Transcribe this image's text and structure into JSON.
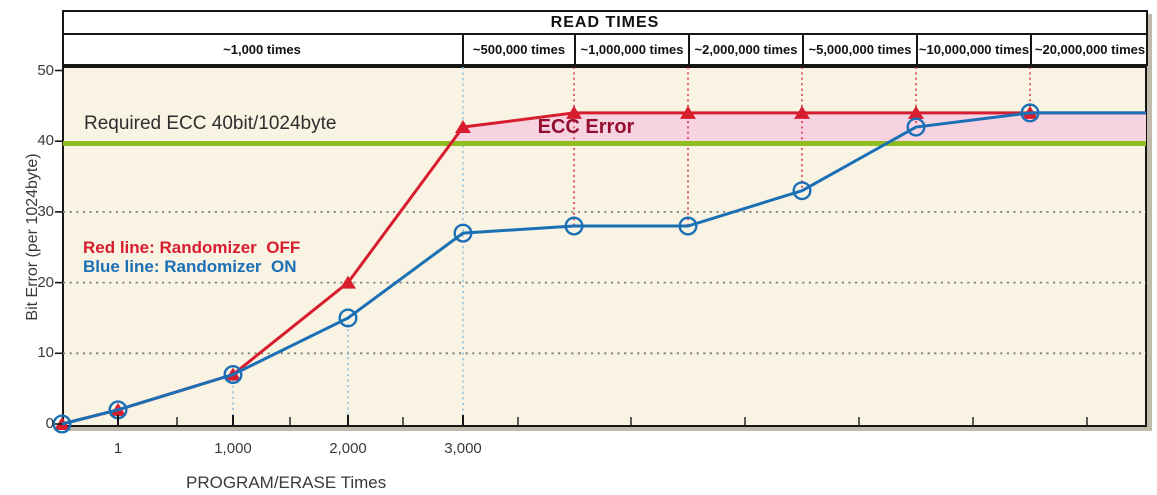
{
  "header": {
    "title": "READ TIMES",
    "columns": [
      {
        "label": "~1,000 times"
      },
      {
        "label": "~500,000 times"
      },
      {
        "label": "~1,000,000 times"
      },
      {
        "label": "~2,000,000 times"
      },
      {
        "label": "~5,000,000 times"
      },
      {
        "label": "~10,000,000 times"
      },
      {
        "label": "~20,000,000 times"
      }
    ]
  },
  "y_axis": {
    "title": "Bit Error (per 1024byte)",
    "ticks": [
      "0",
      "10",
      "20",
      "30",
      "40",
      "50"
    ]
  },
  "x_axis": {
    "title": "PROGRAM/ERASE Times",
    "ticks": [
      "1",
      "1,000",
      "2,000",
      "3,000"
    ]
  },
  "annotations": {
    "required_ecc_label": "Required ECC 40bit/1024byte",
    "ecc_error_label": "ECC Error",
    "legend_red": "Red line: Randomizer  OFF",
    "legend_blue": "Blue line: Randomizer  ON"
  },
  "colors": {
    "red": "#d81e2e",
    "blue": "#1b6fb5",
    "green": "#8fbe21",
    "pink": "#f7d3e2",
    "maroon": "#931031",
    "plot_bg": "#f8f3e3",
    "grid": "#85817a",
    "light_blue_dotted": "#8fc0dd",
    "axis": "#161616"
  },
  "chart_data": {
    "type": "line",
    "title": "READ TIMES",
    "xlabel": "PROGRAM/ERASE Times",
    "ylabel": "Bit Error (per 1024byte)",
    "ylim": [
      0,
      50
    ],
    "grid_y": [
      10,
      20,
      30
    ],
    "x_tick_labels": [
      "1",
      "1,000",
      "2,000",
      "3,000"
    ],
    "read_time_columns": [
      "~1,000 times",
      "~500,000 times",
      "~1,000,000 times",
      "~2,000,000 times",
      "~5,000,000 times",
      "~10,000,000 times",
      "~20,000,000 times"
    ],
    "points_x_labels": [
      "0",
      "1",
      "1,000",
      "2,000",
      "3,000",
      "~500,000 reads",
      "~1,000,000 reads",
      "~2,000,000 reads",
      "~5,000,000 reads",
      "~10,000,000 reads"
    ],
    "series": [
      {
        "name": "Randomizer OFF",
        "color": "#d81e2e",
        "marker": "triangle",
        "values": [
          0,
          2,
          7,
          20,
          42,
          44,
          44,
          44,
          44,
          44
        ],
        "end_value": 44
      },
      {
        "name": "Randomizer ON",
        "color": "#1b6fb5",
        "marker": "circle",
        "values": [
          0,
          2,
          7,
          15,
          27,
          28,
          28,
          33,
          42,
          44
        ],
        "end_value": 44
      }
    ],
    "threshold": {
      "value": 40,
      "label": "Required ECC 40bit/1024byte",
      "color": "#8fbe21"
    },
    "shaded_region": {
      "label": "ECC Error",
      "between": "series[0] and threshold"
    }
  }
}
